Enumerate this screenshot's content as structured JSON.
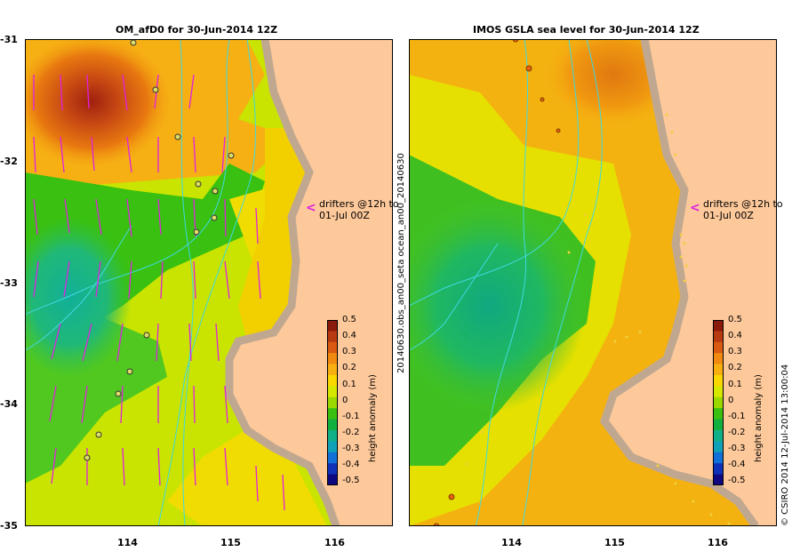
{
  "panels": [
    {
      "title": "OM_afD0  for 30-Jun-2014 12Z"
    },
    {
      "title": "IMOS GSLA sea level  for 30-Jun-2014 12Z"
    }
  ],
  "annotation": {
    "line1": "drifters @12h to",
    "line2": "01-Jul 00Z"
  },
  "y_ticks": [
    "-31",
    "-32",
    "-33",
    "-34",
    "-35"
  ],
  "x_ticks": [
    "114",
    "115",
    "116"
  ],
  "colorbar": {
    "label": "height anomaly (m)",
    "ticks": [
      "0.5",
      "0.4",
      "0.3",
      "0.2",
      "0.1",
      "0",
      "-0.1",
      "-0.2",
      "-0.3",
      "-0.4",
      "-0.5"
    ],
    "colors": [
      "#8a1a0a",
      "#b83a10",
      "#d95a10",
      "#f08a10",
      "#f7b010",
      "#f8d800",
      "#d6e800",
      "#9bd800",
      "#39c010",
      "#10b040",
      "#10b088",
      "#10a0b8",
      "#1070d8",
      "#1030b8",
      "#100880"
    ]
  },
  "side_label": "20140630.obs_an00_seta   ocean_an00_20140630",
  "credit": "© CSIRO 2014   12-Jul-2014 13:00:04",
  "colors": {
    "land": "#fdc89a",
    "coast_shelf": "#c0a890",
    "vectors": "#e020e0",
    "bathymetry": "#40d8e0"
  }
}
